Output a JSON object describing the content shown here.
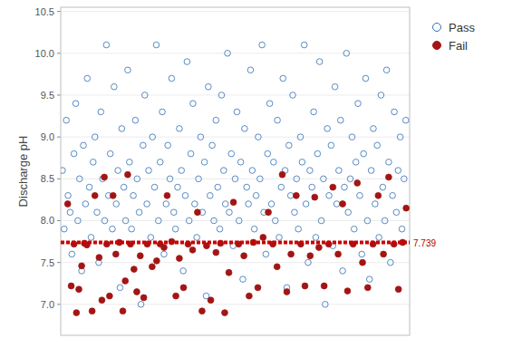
{
  "chart_data": {
    "type": "scatter",
    "ylabel": "Discharge pH",
    "xlim": [
      0,
      1000
    ],
    "ylim": [
      6.63,
      10.55
    ],
    "yticks": [
      {
        "value": 7,
        "label": "7.0"
      },
      7.5,
      {
        "value": 8,
        "label": "8.0"
      },
      8.5,
      {
        "value": 9,
        "label": "9.0"
      },
      9.5,
      {
        "value": 10,
        "label": "10.0"
      },
      10.5
    ],
    "tick_labels": "y",
    "grid": true,
    "legend": "right",
    "hline": 7.739,
    "series": [
      {
        "name": "Pass",
        "color": "#2e6db4",
        "marker": "open-circle",
        "x": [
          5,
          10,
          16,
          21,
          27,
          32,
          38,
          43,
          49,
          54,
          60,
          65,
          71,
          76,
          82,
          87,
          93,
          98,
          104,
          109,
          115,
          120,
          126,
          131,
          137,
          142,
          148,
          153,
          159,
          164,
          170,
          175,
          181,
          186,
          192,
          197,
          203,
          208,
          214,
          219,
          225,
          230,
          236,
          241,
          247,
          252,
          258,
          263,
          269,
          274,
          280,
          285,
          291,
          296,
          302,
          307,
          313,
          318,
          324,
          329,
          335,
          340,
          346,
          351,
          357,
          362,
          368,
          373,
          379,
          384,
          390,
          395,
          401,
          406,
          412,
          417,
          423,
          428,
          434,
          439,
          445,
          450,
          456,
          461,
          467,
          472,
          478,
          483,
          489,
          494,
          500,
          505,
          511,
          516,
          522,
          527,
          533,
          538,
          544,
          549,
          555,
          560,
          566,
          571,
          577,
          582,
          588,
          593,
          599,
          604,
          610,
          615,
          621,
          626,
          632,
          637,
          643,
          648,
          654,
          659,
          665,
          670,
          676,
          681,
          687,
          692,
          698,
          703,
          709,
          714,
          720,
          725,
          731,
          736,
          742,
          747,
          753,
          758,
          764,
          769,
          775,
          780,
          786,
          791,
          797,
          802,
          808,
          813,
          819,
          824,
          830,
          835,
          841,
          846,
          852,
          857,
          863,
          868,
          874,
          879,
          885,
          890,
          896,
          901,
          907,
          912,
          918,
          923,
          929,
          934,
          940,
          945,
          951,
          956,
          962,
          967,
          973,
          978,
          984,
          989
        ],
        "values": [
          8.6,
          7.9,
          9.2,
          8.3,
          8.1,
          7.6,
          8.8,
          9.4,
          8.0,
          8.5,
          7.4,
          8.9,
          8.2,
          9.7,
          8.4,
          7.8,
          8.7,
          9.0,
          8.1,
          7.5,
          9.3,
          8.5,
          8.0,
          10.1,
          8.3,
          8.8,
          7.9,
          9.6,
          8.2,
          8.6,
          7.2,
          9.1,
          8.4,
          8.0,
          9.8,
          8.7,
          7.9,
          8.3,
          9.2,
          8.5,
          8.1,
          7.0,
          8.9,
          9.5,
          8.2,
          8.6,
          7.8,
          9.0,
          8.4,
          10.1,
          8.0,
          8.7,
          9.3,
          7.6,
          8.2,
          8.9,
          8.5,
          9.7,
          8.1,
          7.9,
          8.4,
          9.1,
          8.6,
          7.4,
          8.3,
          9.9,
          8.0,
          8.8,
          9.4,
          8.2,
          7.8,
          8.5,
          9.0,
          8.1,
          8.7,
          7.1,
          9.6,
          8.3,
          8.9,
          8.0,
          9.2,
          8.4,
          7.9,
          9.5,
          8.6,
          8.2,
          10.0,
          8.1,
          8.8,
          7.7,
          8.5,
          9.3,
          8.0,
          8.7,
          7.3,
          9.1,
          8.4,
          8.2,
          9.8,
          8.6,
          7.9,
          8.3,
          9.0,
          8.5,
          10.1,
          8.1,
          7.6,
          8.8,
          9.4,
          8.2,
          8.7,
          8.0,
          9.2,
          7.8,
          8.4,
          9.7,
          8.6,
          7.2,
          8.9,
          8.3,
          9.5,
          8.1,
          8.5,
          7.9,
          9.0,
          8.7,
          10.1,
          8.2,
          7.5,
          8.6,
          8.4,
          9.3,
          7.8,
          8.8,
          9.9,
          8.0,
          8.5,
          7.0,
          9.1,
          8.3,
          8.9,
          7.7,
          9.6,
          8.2,
          8.6,
          9.2,
          7.4,
          8.4,
          10.0,
          8.1,
          8.5,
          9.0,
          7.9,
          8.7,
          9.4,
          8.3,
          7.6,
          8.8,
          9.7,
          8.0,
          7.3,
          8.6,
          9.1,
          8.2,
          8.9,
          7.8,
          9.5,
          8.4,
          8.0,
          9.8,
          8.7,
          7.5,
          8.3,
          9.3,
          8.1,
          8.6,
          9.0,
          7.9,
          8.5,
          9.2
        ]
      },
      {
        "name": "Fail",
        "color": "#a31515",
        "marker": "filled-circle",
        "x": [
          20,
          30,
          38,
          45,
          52,
          60,
          68,
          75,
          90,
          98,
          110,
          118,
          125,
          132,
          140,
          150,
          158,
          168,
          178,
          185,
          192,
          200,
          210,
          218,
          228,
          238,
          248,
          262,
          275,
          285,
          296,
          305,
          318,
          330,
          340,
          352,
          365,
          378,
          392,
          405,
          418,
          430,
          445,
          458,
          470,
          482,
          495,
          510,
          525,
          540,
          552,
          565,
          580,
          595,
          608,
          620,
          635,
          648,
          660,
          675,
          688,
          700,
          715,
          728,
          740,
          755,
          768,
          780,
          795,
          808,
          822,
          838,
          850,
          865,
          880,
          895,
          910,
          925,
          940,
          955,
          968,
          980,
          990
        ],
        "values": [
          8.2,
          7.22,
          7.72,
          6.9,
          7.18,
          7.46,
          7.73,
          7.71,
          6.92,
          8.3,
          7.56,
          7.05,
          8.52,
          7.72,
          7.1,
          8.3,
          7.6,
          7.74,
          6.92,
          7.28,
          8.55,
          7.72,
          7.42,
          7.15,
          7.58,
          7.08,
          7.72,
          7.45,
          7.52,
          7.72,
          7.68,
          8.3,
          7.75,
          7.1,
          7.55,
          7.2,
          7.72,
          7.65,
          8.1,
          6.92,
          7.7,
          7.05,
          7.62,
          7.73,
          6.9,
          7.38,
          8.22,
          7.72,
          7.58,
          7.1,
          7.74,
          7.2,
          7.8,
          8.1,
          7.72,
          7.45,
          8.55,
          7.15,
          7.6,
          8.3,
          7.72,
          7.22,
          7.58,
          8.28,
          7.68,
          7.22,
          7.72,
          8.4,
          7.6,
          8.2,
          7.16,
          7.72,
          8.45,
          7.5,
          7.2,
          7.72,
          8.3,
          7.6,
          8.52,
          7.72,
          7.18,
          7.74,
          8.15
        ]
      }
    ]
  }
}
